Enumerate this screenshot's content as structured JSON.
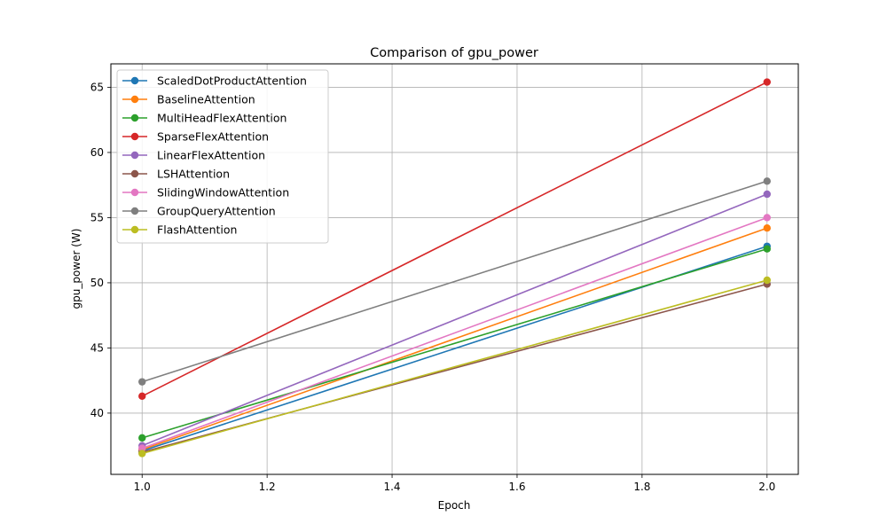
{
  "chart_data": {
    "type": "line",
    "title": "Comparison of gpu_power",
    "xlabel": "Epoch",
    "ylabel": "gpu_power (W)",
    "xlim": [
      0.95,
      2.05
    ],
    "ylim": [
      35.3,
      66.8
    ],
    "xticks": [
      1.0,
      1.2,
      1.4,
      1.6,
      1.8,
      2.0
    ],
    "xtick_labels": [
      "1.0",
      "1.2",
      "1.4",
      "1.6",
      "1.8",
      "2.0"
    ],
    "yticks": [
      40,
      45,
      50,
      55,
      60,
      65
    ],
    "ytick_labels": [
      "40",
      "45",
      "50",
      "55",
      "60",
      "65"
    ],
    "grid": true,
    "legend_position": "top-left",
    "x": [
      1,
      2
    ],
    "series": [
      {
        "name": "ScaledDotProductAttention",
        "color": "#1f77b4",
        "values": [
          37.1,
          52.8
        ]
      },
      {
        "name": "BaselineAttention",
        "color": "#ff7f0e",
        "values": [
          37.2,
          54.2
        ]
      },
      {
        "name": "MultiHeadFlexAttention",
        "color": "#2ca02c",
        "values": [
          38.1,
          52.6
        ]
      },
      {
        "name": "SparseFlexAttention",
        "color": "#d62728",
        "values": [
          41.3,
          65.4
        ]
      },
      {
        "name": "LinearFlexAttention",
        "color": "#9467bd",
        "values": [
          37.5,
          56.8
        ]
      },
      {
        "name": "LSHAttention",
        "color": "#8c564b",
        "values": [
          37.0,
          49.9
        ]
      },
      {
        "name": "SlidingWindowAttention",
        "color": "#e377c2",
        "values": [
          37.3,
          55.0
        ]
      },
      {
        "name": "GroupQueryAttention",
        "color": "#7f7f7f",
        "values": [
          42.4,
          57.8
        ]
      },
      {
        "name": "FlashAttention",
        "color": "#bcbd22",
        "values": [
          36.9,
          50.2
        ]
      }
    ]
  }
}
